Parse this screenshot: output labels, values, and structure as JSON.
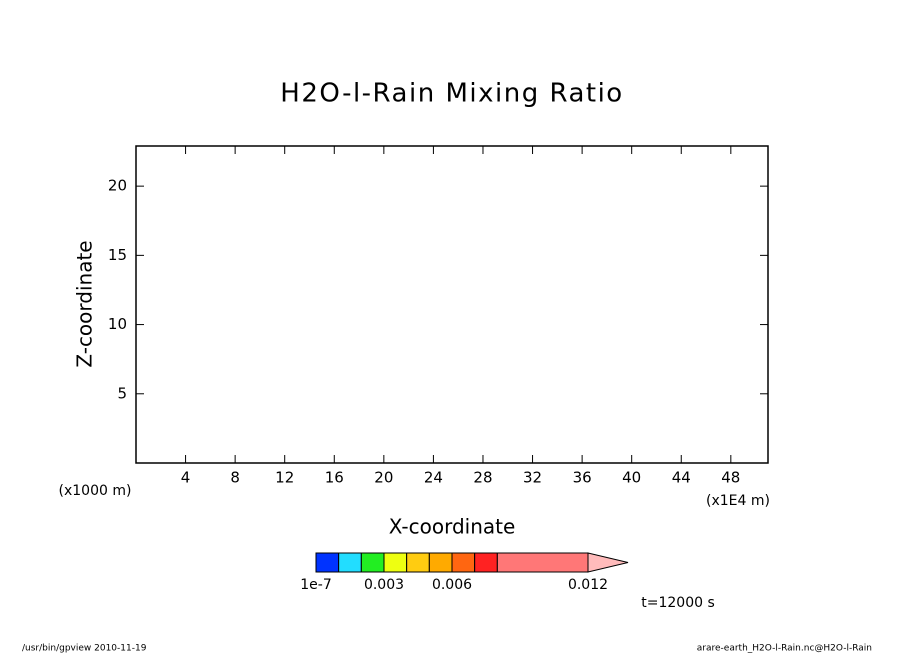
{
  "chart_data": {
    "type": "contour",
    "title": "H2O-l-Rain Mixing Ratio",
    "x_label": "X-coordinate",
    "y_label": "Z-coordinate",
    "x_unit": "(x1E4 m)",
    "y_unit": "(x1000 m)",
    "xlim": [
      0,
      51
    ],
    "xticks": [
      4,
      8,
      12,
      16,
      20,
      24,
      28,
      32,
      36,
      40,
      44,
      48
    ],
    "ylim": [
      0,
      22.9
    ],
    "yticks": [
      5,
      10,
      15,
      20
    ],
    "colorbar": {
      "boundaries": [
        1e-07,
        0.001,
        0.002,
        0.003,
        0.004,
        0.005,
        0.006,
        0.007,
        0.008,
        0.012
      ],
      "colors": [
        "#0033ff",
        "#22ddff",
        "#22ee22",
        "#eeff11",
        "#ffcc11",
        "#ffaa00",
        "#ff6611",
        "#ff2222",
        "#ff7777"
      ],
      "extend_color": "#ffbbbb",
      "ticks": [
        {
          "value": 1e-07,
          "label": "1e-7"
        },
        0.003,
        0.006,
        0.012
      ]
    },
    "time_label": "t=12000 s",
    "footer_left": "/usr/bin/gpview   2010-11-19",
    "footer_right": "arare-earth_H2O-l-Rain.nc@H2O-l-Rain"
  }
}
